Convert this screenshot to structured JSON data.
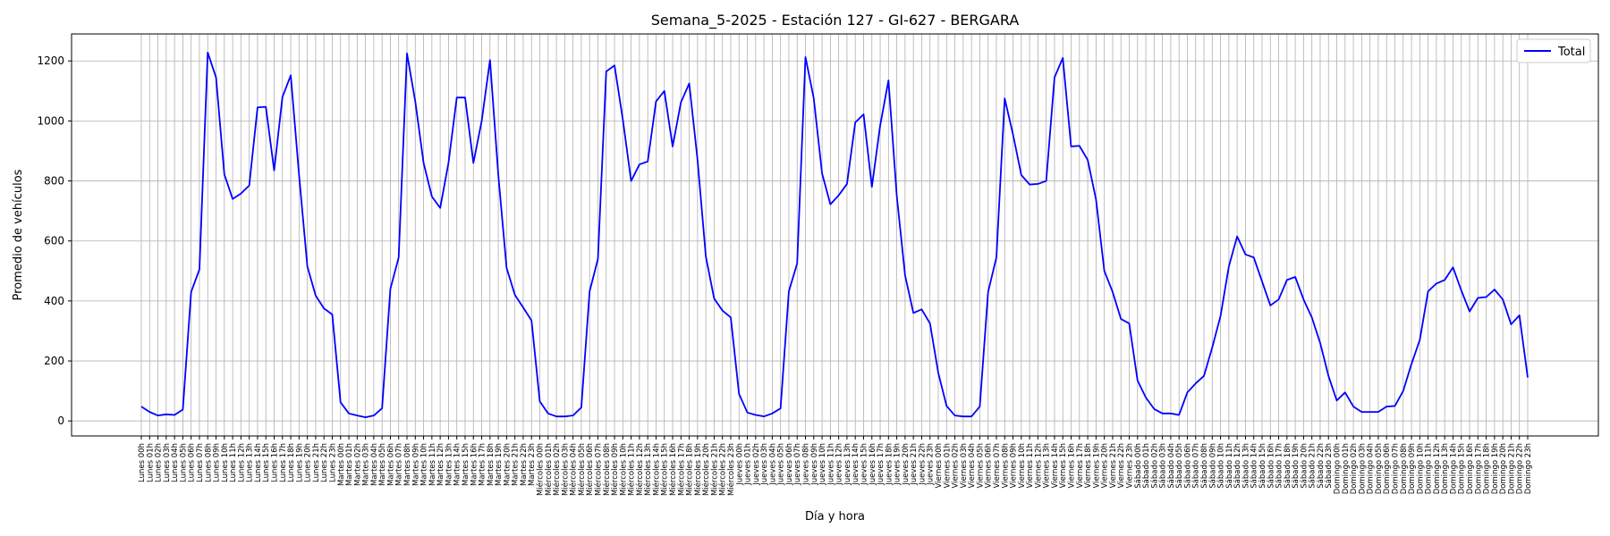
{
  "chart_data": {
    "type": "line",
    "title": "Semana_5-2025 - Estación 127 - GI-627  - BERGARA",
    "xlabel": "Día y hora",
    "ylabel": "Promedio de vehículos",
    "ylim": [
      -50,
      1290
    ],
    "yticks": [
      0,
      200,
      400,
      600,
      800,
      1000,
      1200
    ],
    "grid": true,
    "legend_position": "top-right",
    "series_color": "#0000ff",
    "days": [
      "Lunes",
      "Martes",
      "Miércoles",
      "Jueves",
      "Viernes",
      "Sábado",
      "Domingo"
    ],
    "series": [
      {
        "name": "Total",
        "values": [
          48,
          30,
          18,
          22,
          20,
          38,
          430,
          505,
          1228,
          1145,
          822,
          740,
          758,
          785,
          1045,
          1047,
          835,
          1080,
          1152,
          820,
          515,
          418,
          375,
          355,
          62,
          25,
          18,
          12,
          18,
          42,
          440,
          545,
          1225,
          1065,
          860,
          748,
          710,
          860,
          1078,
          1078,
          860,
          1000,
          1203,
          820,
          510,
          420,
          378,
          335,
          65,
          25,
          15,
          15,
          18,
          45,
          432,
          540,
          1165,
          1185,
          1005,
          800,
          855,
          865,
          1065,
          1100,
          915,
          1062,
          1125,
          870,
          548,
          408,
          368,
          345,
          90,
          28,
          20,
          15,
          25,
          42,
          432,
          525,
          1213,
          1075,
          825,
          722,
          752,
          790,
          995,
          1022,
          780,
          985,
          1135,
          750,
          485,
          360,
          372,
          325,
          160,
          50,
          18,
          15,
          15,
          48,
          430,
          545,
          1075,
          955,
          820,
          788,
          790,
          800,
          1145,
          1210,
          915,
          917,
          870,
          738,
          500,
          430,
          340,
          325,
          135,
          78,
          40,
          25,
          25,
          20,
          95,
          125,
          150,
          245,
          350,
          515,
          615,
          555,
          545,
          465,
          385,
          405,
          470,
          480,
          405,
          345,
          260,
          150,
          68,
          95,
          48,
          30,
          30,
          30,
          48,
          50,
          100,
          190,
          270,
          432,
          458,
          470,
          512,
          435,
          365,
          410,
          413,
          438,
          405,
          322,
          352,
          145
        ]
      }
    ]
  }
}
